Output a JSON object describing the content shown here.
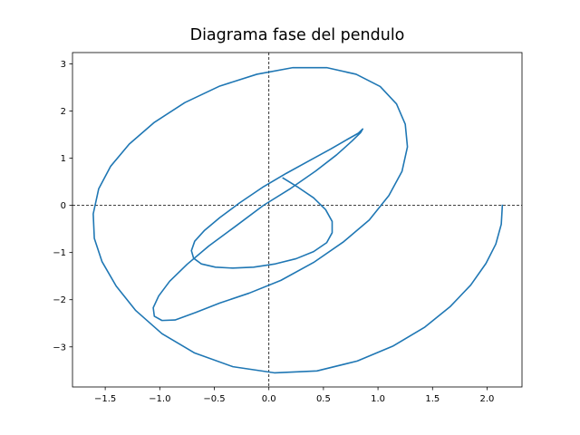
{
  "chart_data": {
    "type": "line",
    "title": "Diagrama fase del pendulo",
    "xlabel": "",
    "ylabel": "",
    "xlim": [
      -1.8,
      2.32
    ],
    "ylim": [
      -3.85,
      3.24
    ],
    "xticks": [
      -1.5,
      -1.0,
      -0.5,
      0.0,
      0.5,
      1.0,
      1.5,
      2.0
    ],
    "xtick_labels": [
      "−1.5",
      "−1.0",
      "−0.5",
      "0.0",
      "0.5",
      "1.0",
      "1.5",
      "2.0"
    ],
    "yticks": [
      -3,
      -2,
      -1,
      0,
      1,
      2,
      3
    ],
    "ytick_labels": [
      "−3",
      "−2",
      "−1",
      "0",
      "1",
      "2",
      "3"
    ],
    "grid": false,
    "reference_lines": {
      "x": 0,
      "y": 0,
      "style": "dashed",
      "color": "#000000"
    },
    "line_color": "#1f77b4",
    "series": [
      {
        "x": [
          2.14,
          2.13,
          2.08,
          1.99,
          1.85,
          1.66,
          1.43,
          1.14,
          0.81,
          0.44,
          0.05,
          -0.33,
          -0.68,
          -0.98,
          -1.22,
          -1.4,
          -1.53,
          -1.6,
          -1.61,
          -1.56,
          -1.45,
          -1.28,
          -1.05,
          -0.77,
          -0.45,
          -0.11,
          0.22,
          0.53,
          0.8,
          1.02,
          1.17,
          1.25,
          1.27,
          1.22,
          1.1,
          0.92,
          0.68,
          0.41,
          0.11,
          -0.18,
          -0.45,
          -0.67,
          -0.86,
          -0.98,
          -1.05,
          -1.06,
          -1.01,
          -0.91,
          -0.75,
          -0.55,
          -0.31,
          -0.05,
          0.2,
          0.43,
          0.62,
          0.76,
          0.84,
          0.86,
          0.82,
          0.72,
          0.57,
          0.38,
          0.16,
          -0.06,
          -0.27,
          -0.45,
          -0.59,
          -0.68,
          -0.71,
          -0.69,
          -0.62,
          -0.49,
          -0.33,
          -0.14,
          0.06,
          0.25,
          0.41,
          0.53,
          0.58,
          0.58,
          0.52,
          0.41,
          0.27,
          0.13
        ],
        "y": [
          0.0,
          -0.4,
          -0.82,
          -1.23,
          -1.69,
          -2.15,
          -2.58,
          -2.98,
          -3.3,
          -3.51,
          -3.55,
          -3.42,
          -3.13,
          -2.72,
          -2.23,
          -1.71,
          -1.19,
          -0.7,
          -0.18,
          0.35,
          0.83,
          1.3,
          1.76,
          2.18,
          2.53,
          2.78,
          2.92,
          2.92,
          2.78,
          2.52,
          2.15,
          1.72,
          1.24,
          0.72,
          0.21,
          -0.31,
          -0.78,
          -1.21,
          -1.59,
          -1.86,
          -2.07,
          -2.27,
          -2.43,
          -2.44,
          -2.35,
          -2.17,
          -1.92,
          -1.61,
          -1.25,
          -0.86,
          -0.45,
          0.0,
          0.36,
          0.73,
          1.07,
          1.36,
          1.54,
          1.62,
          1.53,
          1.4,
          1.2,
          0.96,
          0.68,
          0.38,
          0.05,
          -0.26,
          -0.53,
          -0.76,
          -0.96,
          -1.12,
          -1.24,
          -1.31,
          -1.33,
          -1.31,
          -1.24,
          -1.13,
          -0.98,
          -0.79,
          -0.58,
          -0.34,
          -0.09,
          0.16,
          0.38,
          0.58
        ]
      }
    ]
  }
}
